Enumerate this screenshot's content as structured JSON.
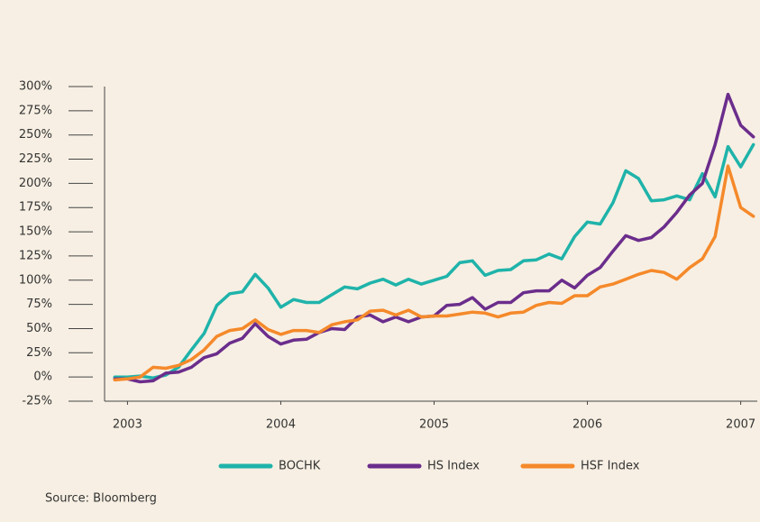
{
  "chart_data": {
    "type": "line",
    "source": "Source: Bloomberg",
    "x": [
      2002.917,
      2003.0,
      2003.083,
      2003.167,
      2003.25,
      2003.333,
      2003.417,
      2003.5,
      2003.583,
      2003.667,
      2003.75,
      2003.833,
      2003.917,
      2004.0,
      2004.083,
      2004.167,
      2004.25,
      2004.333,
      2004.417,
      2004.5,
      2004.583,
      2004.667,
      2004.75,
      2004.833,
      2004.917,
      2005.0,
      2005.083,
      2005.167,
      2005.25,
      2005.333,
      2005.417,
      2005.5,
      2005.583,
      2005.667,
      2005.75,
      2005.833,
      2005.917,
      2006.0,
      2006.083,
      2006.167,
      2006.25,
      2006.333,
      2006.417,
      2006.5,
      2006.583,
      2006.667,
      2006.75,
      2006.833,
      2006.917,
      2007.0,
      2007.083
    ],
    "series": [
      {
        "name": "BOCHK",
        "color": "#1fb3aa",
        "values": [
          0,
          0,
          1,
          -1,
          2,
          10,
          28,
          45,
          74,
          86,
          88,
          106,
          92,
          72,
          80,
          77,
          77,
          85,
          93,
          91,
          97,
          101,
          95,
          101,
          96,
          100,
          104,
          118,
          120,
          105,
          110,
          111,
          120,
          121,
          127,
          122,
          145,
          160,
          158,
          180,
          213,
          205,
          182,
          183,
          187,
          183,
          210,
          186,
          238,
          217,
          240
        ]
      },
      {
        "name": "HS Index",
        "color": "#6b2d8c",
        "values": [
          -2,
          -2,
          -5,
          -4,
          4,
          5,
          10,
          20,
          24,
          35,
          40,
          55,
          42,
          34,
          38,
          39,
          46,
          50,
          49,
          62,
          64,
          57,
          62,
          57,
          62,
          63,
          74,
          75,
          82,
          70,
          77,
          77,
          87,
          89,
          89,
          100,
          92,
          105,
          113,
          130,
          146,
          141,
          144,
          155,
          170,
          188,
          200,
          240,
          292,
          260,
          248
        ]
      },
      {
        "name": "HSF Index",
        "color": "#f5892a",
        "values": [
          -3,
          -2,
          0,
          10,
          9,
          12,
          18,
          28,
          42,
          48,
          50,
          59,
          49,
          44,
          48,
          48,
          46,
          54,
          57,
          59,
          68,
          69,
          64,
          69,
          62,
          63,
          63,
          65,
          67,
          66,
          62,
          66,
          67,
          74,
          77,
          76,
          84,
          84,
          93,
          96,
          101,
          106,
          110,
          108,
          101,
          113,
          122,
          145,
          218,
          175,
          166
        ]
      }
    ],
    "xlim": [
      2002.9,
      2007.1
    ],
    "xticks": [
      2003,
      2004,
      2005,
      2006,
      2007
    ],
    "ylim": [
      -25,
      300
    ],
    "yticks": [
      {
        "value": -25,
        "label": "-25%"
      },
      {
        "value": 0,
        "label": "0%"
      },
      {
        "value": 25,
        "label": "25%"
      },
      {
        "value": 50,
        "label": "50%"
      },
      {
        "value": 75,
        "label": "75%"
      },
      {
        "value": 100,
        "label": "100%"
      },
      {
        "value": 125,
        "label": "125%"
      },
      {
        "value": 150,
        "label": "150%"
      },
      {
        "value": 175,
        "label": "175%"
      },
      {
        "value": 200,
        "label": "200%"
      },
      {
        "value": 225,
        "label": "225%"
      },
      {
        "value": 250,
        "label": "250%"
      },
      {
        "value": 275,
        "label": "275%"
      },
      {
        "value": 300,
        "label": "300%"
      }
    ],
    "legend": "bottom"
  }
}
